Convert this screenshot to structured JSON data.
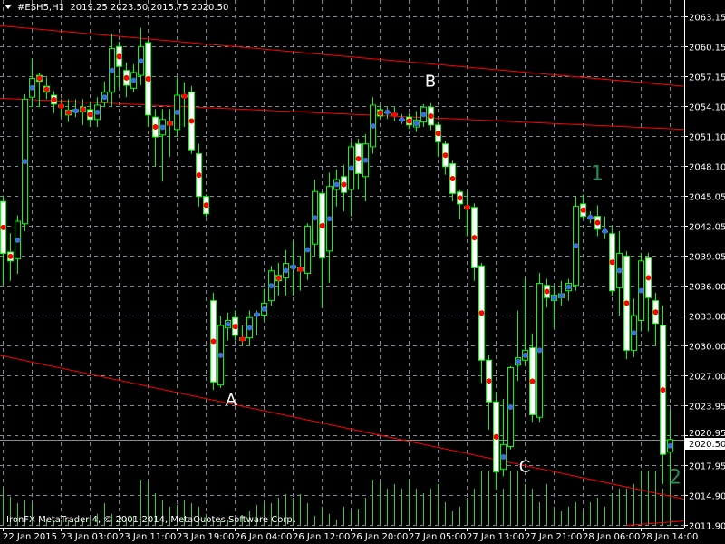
{
  "window": {
    "symbol_timeframe": "#ESH5,H1",
    "ohlc_text": "2019.25 2023.50 2015.75 2020.50",
    "copyright": "IronFX MetaTrader 4, © 2001-2014, MetaQuotes Software Corp."
  },
  "colors": {
    "background": "#000000",
    "grid": "#7f8a99",
    "candle_outline": "#00ff00",
    "bear_body": "#ffffff",
    "bull_body": "#000000",
    "volume": "#32cd32",
    "trendline": "#ff0000",
    "dot_down": "#ff0000",
    "dot_up": "#4169e1",
    "label_white": "#ffffff",
    "label_green": "#2e8b57"
  },
  "chart_data": {
    "type": "candlestick",
    "ylim": [
      2011.9,
      2063.15
    ],
    "grid": true,
    "price_ticks": [
      "2063.15",
      "2060.15",
      "2057.15",
      "2054.10",
      "2051.10",
      "2048.10",
      "2045.05",
      "2042.05",
      "2039.05",
      "2036.00",
      "2033.00",
      "2030.00",
      "2027.00",
      "2023.95",
      "2020.95",
      "2017.95",
      "2014.90",
      "2011.90"
    ],
    "current_price": "2020.50",
    "time_labels": [
      {
        "bar": 0,
        "label": "22 Jan 2015"
      },
      {
        "bar": 8,
        "label": "23 Jan 03:00"
      },
      {
        "bar": 16,
        "label": "23 Jan 11:00"
      },
      {
        "bar": 24,
        "label": "23 Jan 19:00"
      },
      {
        "bar": 32,
        "label": "26 Jan 04:00"
      },
      {
        "bar": 40,
        "label": "26 Jan 12:00"
      },
      {
        "bar": 48,
        "label": "26 Jan 20:00"
      },
      {
        "bar": 56,
        "label": "27 Jan 05:00"
      },
      {
        "bar": 64,
        "label": "27 Jan 13:00"
      },
      {
        "bar": 72,
        "label": "27 Jan 21:00"
      },
      {
        "bar": 80,
        "label": "28 Jan 06:00"
      },
      {
        "bar": 88,
        "label": "28 Jan 14:00"
      }
    ],
    "candles_ohlc": [
      [
        2044.5,
        2045.1,
        2036.0,
        2039.25
      ],
      [
        2039.4,
        2041.3,
        2036.5,
        2038.5
      ],
      [
        2038.7,
        2043.1,
        2037.2,
        2042.5
      ],
      [
        2042.25,
        2055.3,
        2041.5,
        2054.8
      ],
      [
        2055.0,
        2058.9,
        2054.0,
        2056.9
      ],
      [
        2057.2,
        2057.5,
        2054.0,
        2056.6
      ],
      [
        2056.1,
        2057.0,
        2054.8,
        2055.5
      ],
      [
        2055.2,
        2055.6,
        2053.4,
        2054.3
      ],
      [
        2054.2,
        2054.8,
        2053.0,
        2054.0
      ],
      [
        2053.7,
        2054.8,
        2052.5,
        2053.2
      ],
      [
        2053.5,
        2054.8,
        2053.0,
        2053.75
      ],
      [
        2054.0,
        2054.8,
        2052.2,
        2053.5
      ],
      [
        2053.75,
        2054.6,
        2052.0,
        2052.75
      ],
      [
        2052.75,
        2055.0,
        2052.0,
        2054.2
      ],
      [
        2054.5,
        2056.6,
        2054.0,
        2055.5
      ],
      [
        2055.5,
        2061.4,
        2054.0,
        2059.9
      ],
      [
        2060.1,
        2060.6,
        2056.0,
        2058.1
      ],
      [
        2057.7,
        2058.5,
        2055.0,
        2056.2
      ],
      [
        2055.9,
        2058.3,
        2055.5,
        2057.5
      ],
      [
        2057.2,
        2062.0,
        2056.2,
        2060.1
      ],
      [
        2060.5,
        2060.8,
        2052.0,
        2053.2
      ],
      [
        2053.0,
        2053.8,
        2048.0,
        2051.0
      ],
      [
        2051.2,
        2053.8,
        2046.5,
        2052.75
      ],
      [
        2052.5,
        2053.8,
        2049.0,
        2052.2
      ],
      [
        2051.75,
        2057.0,
        2051.0,
        2055.2
      ],
      [
        2055.2,
        2056.5,
        2052.0,
        2055.0
      ],
      [
        2055.5,
        2056.1,
        2049.3,
        2049.7
      ],
      [
        2049.3,
        2050.3,
        2044.0,
        2045.0
      ],
      [
        2045.0,
        2045.2,
        2042.9,
        2043.25
      ],
      [
        2034.5,
        2035.3,
        2025.5,
        2026.3
      ],
      [
        2026.0,
        2033.0,
        2025.7,
        2032.0
      ],
      [
        2031.75,
        2033.3,
        2030.5,
        2032.5
      ],
      [
        2032.8,
        2033.5,
        2030.5,
        2031.0
      ],
      [
        2030.75,
        2032.0,
        2030.0,
        2030.5
      ],
      [
        2030.75,
        2033.5,
        2030.0,
        2032.8
      ],
      [
        2033.0,
        2033.5,
        2031.0,
        2033.2
      ],
      [
        2033.05,
        2035.7,
        2032.5,
        2034.25
      ],
      [
        2034.5,
        2038.0,
        2034.0,
        2037.5
      ],
      [
        2037.05,
        2038.3,
        2035.0,
        2036.5
      ],
      [
        2036.8,
        2039.6,
        2035.0,
        2038.25
      ],
      [
        2037.8,
        2040.5,
        2035.0,
        2038.0
      ],
      [
        2037.8,
        2039.0,
        2035.5,
        2037.5
      ],
      [
        2037.25,
        2042.3,
        2036.6,
        2042.0
      ],
      [
        2040.2,
        2046.7,
        2039.0,
        2045.5
      ],
      [
        2045.3,
        2045.5,
        2033.8,
        2038.8
      ],
      [
        2039.5,
        2047.4,
        2036.3,
        2046.0
      ],
      [
        2045.7,
        2047.7,
        2044.0,
        2046.7
      ],
      [
        2047.0,
        2048.2,
        2043.5,
        2045.4
      ],
      [
        2045.7,
        2050.5,
        2043.0,
        2050.0
      ],
      [
        2050.3,
        2050.8,
        2045.7,
        2047.3
      ],
      [
        2047.0,
        2051.3,
        2044.5,
        2050.3
      ],
      [
        2050.0,
        2055.0,
        2049.3,
        2054.2
      ],
      [
        2053.75,
        2054.2,
        2052.8,
        2053.1
      ],
      [
        2053.5,
        2054.0,
        2052.8,
        2053.5
      ],
      [
        2053.3,
        2054.0,
        2052.6,
        2053.2
      ],
      [
        2052.75,
        2053.3,
        2052.3,
        2052.75
      ],
      [
        2053.0,
        2053.4,
        2051.8,
        2052.2
      ],
      [
        2052.0,
        2053.6,
        2051.5,
        2052.7
      ],
      [
        2052.5,
        2054.3,
        2052.0,
        2054.0
      ],
      [
        2054.0,
        2054.4,
        2051.7,
        2052.2
      ],
      [
        2052.2,
        2052.5,
        2049.0,
        2050.5
      ],
      [
        2050.3,
        2050.6,
        2047.2,
        2048.0
      ],
      [
        2048.3,
        2048.6,
        2044.5,
        2045.3
      ],
      [
        2045.45,
        2045.6,
        2042.7,
        2044.25
      ],
      [
        2044.0,
        2045.5,
        2041.0,
        2043.8
      ],
      [
        2043.9,
        2044.3,
        2036.5,
        2037.8
      ],
      [
        2038.0,
        2038.3,
        2026.2,
        2028.5
      ],
      [
        2028.5,
        2029.0,
        2021.5,
        2024.3
      ],
      [
        2024.3,
        2025.3,
        2015.5,
        2017.25
      ],
      [
        2017.5,
        2024.6,
        2016.8,
        2020.0
      ],
      [
        2019.8,
        2027.9,
        2019.5,
        2027.75
      ],
      [
        2028.0,
        2033.5,
        2026.4,
        2028.75
      ],
      [
        2028.5,
        2036.8,
        2028.0,
        2029.5
      ],
      [
        2029.75,
        2031.2,
        2022.3,
        2023.0
      ],
      [
        2022.75,
        2037.3,
        2022.3,
        2036.25
      ],
      [
        2036.05,
        2036.7,
        2033.8,
        2034.8
      ],
      [
        2034.5,
        2036.0,
        2031.7,
        2035.05
      ],
      [
        2034.8,
        2036.5,
        2034.0,
        2035.2
      ],
      [
        2035.5,
        2036.7,
        2034.5,
        2036.25
      ],
      [
        2036.05,
        2045.0,
        2035.5,
        2044.0
      ],
      [
        2044.25,
        2045.2,
        2042.8,
        2043.0
      ],
      [
        2042.9,
        2043.5,
        2042.3,
        2042.9
      ],
      [
        2043.0,
        2044.1,
        2041.0,
        2041.7
      ],
      [
        2041.5,
        2043.0,
        2040.7,
        2041.5
      ],
      [
        2041.25,
        2042.0,
        2035.0,
        2035.5
      ],
      [
        2035.8,
        2041.5,
        2033.0,
        2039.25
      ],
      [
        2039.0,
        2039.5,
        2028.6,
        2029.5
      ],
      [
        2029.5,
        2034.7,
        2028.8,
        2033.0
      ],
      [
        2032.5,
        2039.3,
        2031.4,
        2038.5
      ],
      [
        2038.8,
        2039.3,
        2031.4,
        2034.8
      ],
      [
        2034.5,
        2035.3,
        2030.0,
        2032.2
      ],
      [
        2032.0,
        2034.0,
        2016.0,
        2019.0
      ],
      [
        2019.25,
        2023.5,
        2015.75,
        2020.5
      ]
    ],
    "volume_relative": [
      41,
      31,
      24,
      27,
      25,
      8,
      6,
      5,
      6,
      5,
      4,
      6,
      8,
      12,
      24,
      12,
      6,
      8,
      10,
      50,
      49,
      35,
      27,
      20,
      22,
      27,
      24,
      20,
      12,
      6,
      5,
      5,
      7,
      10,
      15,
      22,
      24,
      24,
      30,
      34,
      30,
      34,
      24,
      10,
      20,
      12,
      6,
      20,
      15,
      18,
      30,
      50,
      47,
      40,
      45,
      40,
      50,
      40,
      35,
      40,
      45,
      25,
      15,
      20,
      30,
      40,
      60,
      60,
      35,
      40,
      60,
      60,
      45,
      40,
      25,
      45,
      20,
      15,
      20,
      25,
      15,
      25,
      30,
      20,
      35,
      40,
      40,
      45,
      60,
      60,
      60,
      40,
      45
    ],
    "trendlines": [
      {
        "from": [
          -0.4,
          2062.2
        ],
        "to": [
          94,
          2056.1
        ]
      },
      {
        "from": [
          -0.4,
          2054.9
        ],
        "to": [
          94,
          2051.75
        ]
      },
      {
        "from": [
          -0.4,
          2029.0
        ],
        "to": [
          94,
          2014.5
        ]
      },
      {
        "from": [
          86,
          2011.85
        ],
        "to": [
          94,
          2012.3
        ]
      }
    ],
    "annotations": [
      {
        "text": "A",
        "bar": 31.5,
        "price": 2024.6,
        "color": "white"
      },
      {
        "text": "B",
        "bar": 59,
        "price": 2056.7,
        "color": "white"
      },
      {
        "text": "C",
        "bar": 72,
        "price": 2017.9,
        "color": "white"
      },
      {
        "text": "1",
        "bar": 82,
        "price": 2047.3,
        "color": "green"
      },
      {
        "text": "2",
        "bar": 93.5,
        "price": 2016.7,
        "color": "green"
      }
    ]
  }
}
